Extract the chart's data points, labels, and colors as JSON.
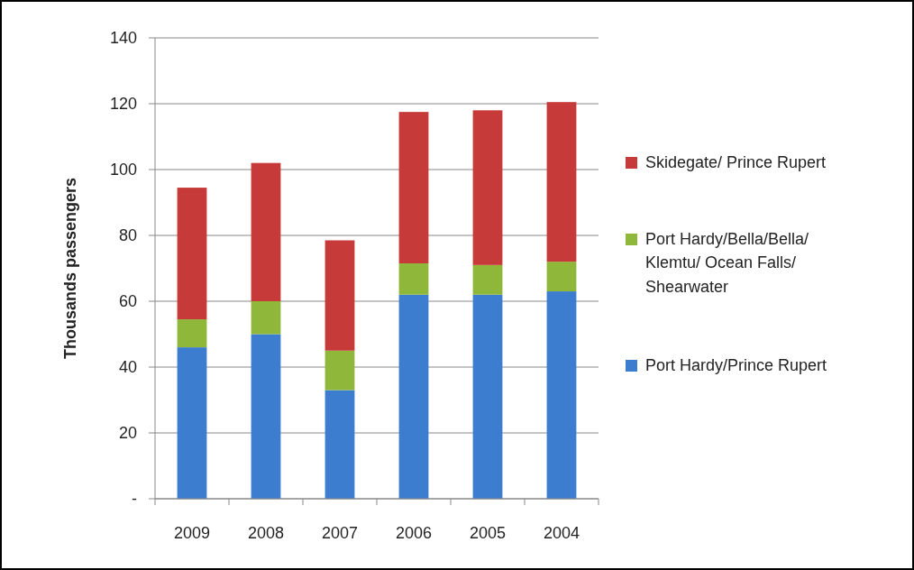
{
  "chart_data": {
    "type": "bar",
    "stacked": true,
    "ylabel": "Thousands passengers",
    "categories": [
      "2009",
      "2008",
      "2007",
      "2006",
      "2005",
      "2004"
    ],
    "series": [
      {
        "name": "Port Hardy/Prince Rupert",
        "color": "#3c7dd0",
        "values": [
          46,
          50,
          33,
          62,
          62,
          63
        ]
      },
      {
        "name": "Port Hardy/Bella/Bella/ Klemtu/ Ocean Falls/ Shearwater",
        "color": "#8fb83a",
        "values": [
          8.5,
          10,
          12,
          9.5,
          9,
          9
        ]
      },
      {
        "name": "Skidegate/ Prince Rupert",
        "color": "#c73a3a",
        "values": [
          40,
          42,
          33.5,
          46,
          47,
          48.5
        ]
      }
    ],
    "ylim": [
      0,
      140
    ],
    "yticks": [
      {
        "value": 0,
        "label": "-"
      },
      20,
      40,
      60,
      80,
      100,
      120,
      140
    ],
    "grid": "y",
    "legend": "right"
  }
}
